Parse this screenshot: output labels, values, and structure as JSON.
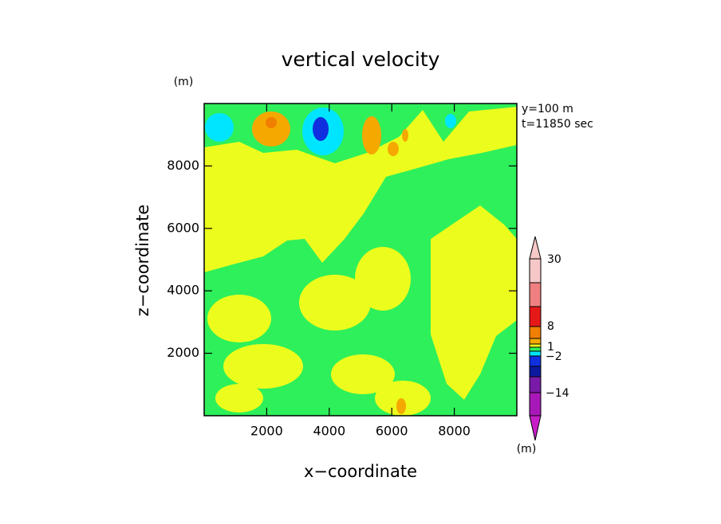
{
  "chart_data": {
    "type": "contour",
    "title": "vertical velocity",
    "x_label": "x−coordinate",
    "y_label": "z−coordinate",
    "x_unit": "(m)",
    "y_unit": "(m)",
    "info": [
      "y=100 m",
      "t=11850 sec"
    ],
    "xlim": [
      0,
      10000
    ],
    "ylim": [
      0,
      10000
    ],
    "xticks": [
      2000,
      4000,
      6000,
      8000
    ],
    "yticks": [
      2000,
      4000,
      6000,
      8000
    ],
    "colorbar": {
      "unit": "(m)",
      "ticks": [
        30,
        8,
        1,
        {
          "value": -2,
          "label": "−2"
        },
        {
          "value": -14,
          "label": "−14"
        }
      ]
    }
  }
}
